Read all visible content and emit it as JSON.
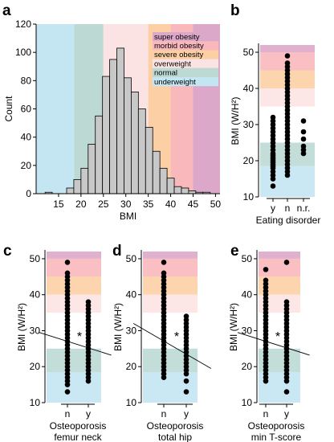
{
  "colors": {
    "underweight": "#c3e6f2",
    "normal": "#bcd9d4",
    "overweight": "#fce3e3",
    "severe_obesity": "#fccfa5",
    "morbid_obesity": "#f8b8bc",
    "super_obesity": "#dba8c9",
    "bar_fill": "#c8c8c8",
    "marker": "#000000"
  },
  "categories": [
    {
      "key": "super_obesity",
      "label": "super obesity",
      "min": 50,
      "max": 60
    },
    {
      "key": "morbid_obesity",
      "label": "morbid obesity",
      "min": 45,
      "max": 50
    },
    {
      "key": "severe_obesity",
      "label": "severe obesity",
      "min": 40,
      "max": 45
    },
    {
      "key": "overweight",
      "label": "overweight",
      "min": 35,
      "max": 40
    },
    {
      "key": "normal",
      "label": "normal",
      "min": 18.5,
      "max": 25
    },
    {
      "key": "underweight",
      "label": "underweight",
      "min": 10,
      "max": 18.5
    }
  ],
  "panels": {
    "a": {
      "letter": "a"
    },
    "b": {
      "letter": "b"
    },
    "c": {
      "letter": "c"
    },
    "d": {
      "letter": "d"
    },
    "e": {
      "letter": "e"
    }
  },
  "chart_data": [
    {
      "panel": "a",
      "type": "bar",
      "xlabel": "BMI",
      "ylabel": "Count",
      "xlim": [
        10,
        51
      ],
      "ylim": [
        0,
        120
      ],
      "xticks": [
        15,
        20,
        25,
        30,
        35,
        40,
        45,
        50
      ],
      "yticks": [
        0,
        20,
        40,
        60,
        80,
        100,
        120
      ],
      "bin_width": 1.6,
      "bin_starts": [
        12.0,
        13.6,
        15.2,
        16.8,
        18.4,
        20.0,
        21.6,
        23.2,
        24.8,
        26.4,
        28.0,
        29.6,
        31.2,
        32.8,
        34.4,
        36.0,
        37.6,
        39.2,
        40.8,
        42.4,
        44.0,
        45.6,
        47.2
      ],
      "values": [
        1,
        0,
        0,
        4,
        10,
        18,
        35,
        55,
        83,
        95,
        103,
        82,
        72,
        60,
        47,
        30,
        18,
        11,
        5,
        4,
        2,
        1,
        1
      ],
      "legend": [
        "super obesity",
        "morbid obesity",
        "severe obesity",
        "overweight",
        "normal",
        "underweight"
      ]
    },
    {
      "panel": "b",
      "type": "scatter",
      "ylabel": "BMI (W/H²)",
      "xlabel": "Eating disorder",
      "categories": [
        "y",
        "n",
        "n.r."
      ],
      "ylim": [
        10,
        52
      ],
      "yticks": [
        10,
        20,
        30,
        40,
        50
      ],
      "series": [
        {
          "category": "y",
          "values": [
            13,
            15,
            16,
            17,
            18,
            18.5,
            19,
            19.5,
            20,
            20.5,
            21,
            21.5,
            22,
            23,
            24,
            25,
            26,
            27,
            28,
            29,
            30,
            31,
            32
          ]
        },
        {
          "category": "n",
          "values": [
            16,
            17,
            18,
            19,
            20,
            21,
            22,
            23,
            24,
            25,
            26,
            27,
            28,
            29,
            30,
            31,
            32,
            33,
            34,
            35,
            36,
            37,
            38,
            39,
            40,
            41,
            42,
            43,
            44,
            45,
            46,
            47,
            49
          ]
        },
        {
          "category": "n.r.",
          "values": [
            22,
            23,
            24,
            26,
            28,
            31
          ]
        }
      ]
    },
    {
      "panel": "c",
      "type": "scatter",
      "ylabel": "BMI (W/H²)",
      "xlabel": "Osteoporosis",
      "xlabel2": "femur neck",
      "categories": [
        "n",
        "y"
      ],
      "ylim": [
        10,
        52
      ],
      "yticks": [
        10,
        20,
        30,
        40,
        50
      ],
      "annotation": "*",
      "trend_line": {
        "x": [
          -1.35,
          2.1
        ],
        "y": [
          29.5,
          23.2
        ]
      },
      "series": [
        {
          "category": "n",
          "values": [
            13,
            15,
            16,
            17,
            18,
            19,
            20,
            21,
            22,
            23,
            24,
            25,
            26,
            27,
            28,
            29,
            30,
            31,
            32,
            33,
            34,
            35,
            36,
            37,
            38,
            39,
            40,
            41,
            42,
            43,
            44,
            45,
            46,
            49
          ]
        },
        {
          "category": "y",
          "values": [
            16,
            17,
            18,
            19,
            20,
            21,
            22,
            23,
            24,
            25,
            26,
            27,
            28,
            29,
            30,
            31,
            32,
            33,
            34,
            35,
            36,
            37,
            38
          ]
        }
      ]
    },
    {
      "panel": "d",
      "type": "scatter",
      "ylabel": "BMI (W/H²)",
      "xlabel": "Osteoporosis",
      "xlabel2": "total hip",
      "categories": [
        "n",
        "y"
      ],
      "ylim": [
        10,
        52
      ],
      "yticks": [
        10,
        20,
        30,
        40,
        50
      ],
      "annotation": "*",
      "trend_line": {
        "x": [
          -1.35,
          2.1
        ],
        "y": [
          32,
          19.5
        ]
      },
      "series": [
        {
          "category": "n",
          "values": [
            17,
            18,
            19,
            20,
            21,
            22,
            23,
            24,
            25,
            26,
            27,
            28,
            29,
            30,
            31,
            32,
            33,
            34,
            35,
            36,
            37,
            38,
            39,
            40,
            41,
            42,
            43,
            44,
            45,
            46,
            49
          ]
        },
        {
          "category": "y",
          "values": [
            13,
            16,
            18,
            19,
            20,
            21,
            22,
            23,
            24,
            25,
            26,
            27,
            28,
            29,
            30,
            31,
            32,
            33,
            34
          ]
        }
      ]
    },
    {
      "panel": "e",
      "type": "scatter",
      "ylabel": "BMI (W/H²)",
      "xlabel": "Osteoporosis",
      "xlabel2": "min T-score",
      "categories": [
        "n",
        "y"
      ],
      "ylim": [
        10,
        52
      ],
      "yticks": [
        10,
        20,
        30,
        40,
        50
      ],
      "annotation": "*",
      "trend_line": {
        "x": [
          -1.35,
          2.1
        ],
        "y": [
          29.5,
          23.2
        ]
      },
      "series": [
        {
          "category": "n",
          "values": [
            16,
            17,
            18,
            19,
            20,
            21,
            22,
            23,
            24,
            25,
            26,
            27,
            28,
            29,
            30,
            31,
            32,
            33,
            34,
            35,
            36,
            37,
            38,
            39,
            40,
            41,
            42,
            43,
            44,
            47
          ]
        },
        {
          "category": "y",
          "values": [
            13,
            16,
            17,
            18,
            19,
            20,
            21,
            22,
            23,
            24,
            25,
            26,
            27,
            28,
            29,
            30,
            31,
            32,
            33,
            34,
            35,
            36,
            37,
            38,
            49
          ]
        }
      ]
    }
  ]
}
